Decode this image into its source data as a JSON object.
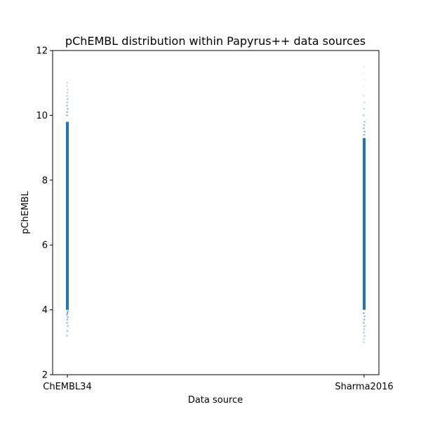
{
  "chart_data": {
    "type": "scatter",
    "title": "pChEMBL distribution within Papyrus++ data sources",
    "xlabel": "Data source",
    "ylabel": "pChEMBL",
    "categories": [
      "ChEMBL34",
      "Sharma2016"
    ],
    "ylim": [
      2,
      12
    ],
    "yticks": [
      2,
      4,
      6,
      8,
      10,
      12
    ],
    "grid": false,
    "marker_color": "#1f77b4",
    "series": [
      {
        "category": "ChEMBL34",
        "dense_range": [
          4.0,
          9.8
        ],
        "points": [
          3.2,
          3.35,
          3.5,
          3.6,
          3.7,
          3.78,
          3.85,
          3.9,
          3.95,
          10.0,
          10.1,
          10.2,
          10.3,
          10.4,
          10.5,
          10.6,
          10.7,
          10.8,
          10.9,
          11.0
        ]
      },
      {
        "category": "Sharma2016",
        "dense_range": [
          4.0,
          9.3
        ],
        "points": [
          3.0,
          3.1,
          3.2,
          3.3,
          3.4,
          3.5,
          3.6,
          3.7,
          3.8,
          3.9,
          9.4,
          9.5,
          9.6,
          9.7,
          9.8,
          10.0,
          10.2,
          10.4,
          10.6,
          10.9,
          11.1,
          11.3,
          11.5
        ]
      }
    ]
  }
}
